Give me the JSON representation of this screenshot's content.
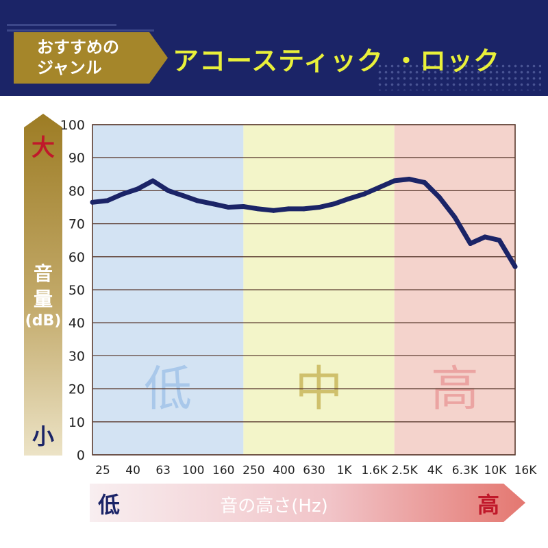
{
  "header": {
    "tag_line1": "おすすめの",
    "tag_line2": "ジャンル",
    "title": "アコースティック ・ロック"
  },
  "yaxis_bar": {
    "big": "大",
    "label_line1": "音",
    "label_line2": "量",
    "unit": "(dB)",
    "small": "小"
  },
  "xaxis_bar": {
    "low": "低",
    "title": "音の高さ(Hz)",
    "high": "高"
  },
  "colors": {
    "banner_bg": "#1b2467",
    "tag_gold": "#a5862a",
    "title_yellow": "#e9f03a",
    "line": "#1b2467",
    "band_low": "#d3e3f3",
    "band_mid": "#f3f5c9",
    "band_high": "#f4d3cc",
    "label_low": "#a9c8ea",
    "label_mid": "#cfc06c",
    "label_high": "#eba4a2",
    "accent_red": "#c0182a"
  },
  "chart_data": {
    "type": "line",
    "ylim": [
      0,
      100
    ],
    "yticks": [
      0,
      10,
      20,
      30,
      40,
      50,
      60,
      70,
      80,
      90,
      100
    ],
    "categories": [
      "25",
      "40",
      "63",
      "100",
      "160",
      "250",
      "400",
      "630",
      "1K",
      "1.6K",
      "2.5K",
      "4K",
      "6.3K",
      "10K",
      "16K"
    ],
    "bands": [
      {
        "label": "低",
        "from": "25",
        "to": "250",
        "color": "#d3e3f3",
        "label_color": "#a9c8ea"
      },
      {
        "label": "中",
        "from": "250",
        "to": "2.5K",
        "color": "#f3f5c9",
        "label_color": "#cfc06c"
      },
      {
        "label": "高",
        "from": "2.5K",
        "to": "16K",
        "color": "#f4d3cc",
        "label_color": "#eba4a2"
      }
    ],
    "series": [
      {
        "color": "#1b2467",
        "x": [
          25,
          31.5,
          40,
          50,
          63,
          80,
          100,
          125,
          160,
          200,
          250,
          315,
          400,
          500,
          630,
          800,
          1000,
          1250,
          1600,
          2000,
          2500,
          3150,
          4000,
          5000,
          6300,
          8000,
          10000,
          12500,
          16000
        ],
        "values": [
          76.5,
          77,
          79,
          80.5,
          83,
          80,
          78.5,
          77,
          76,
          75,
          75.2,
          74.5,
          74,
          74.5,
          74.5,
          75,
          76,
          77.5,
          79,
          81,
          83,
          83.5,
          82.5,
          78,
          72,
          64,
          66,
          65,
          57
        ]
      }
    ]
  }
}
